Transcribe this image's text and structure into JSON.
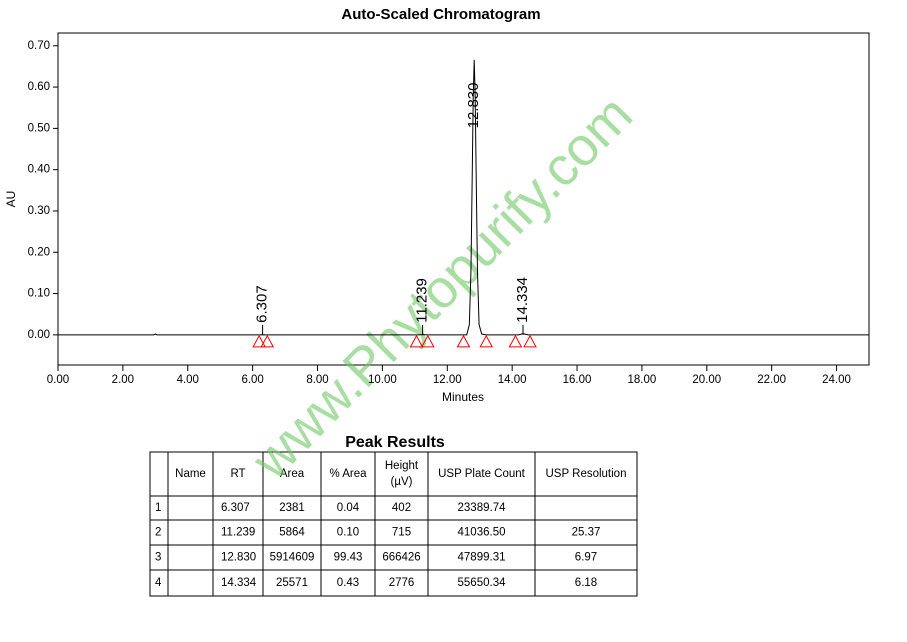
{
  "chart_data": {
    "type": "line",
    "title": "Auto-Scaled Chromatogram",
    "x_label": "Minutes",
    "y_label": "AU",
    "x": [
      0,
      2.95,
      3.0,
      3.05,
      6.2,
      6.307,
      6.42,
      11.1,
      11.239,
      11.4,
      12.6,
      12.68,
      12.73,
      12.77,
      12.8,
      12.83,
      12.86,
      12.89,
      12.93,
      12.98,
      13.06,
      13.2,
      14.2,
      14.334,
      14.5,
      25
    ],
    "values": [
      0,
      0,
      0.002,
      0,
      0,
      0.0004,
      0,
      0,
      0.0007,
      0,
      0,
      0.025,
      0.155,
      0.393,
      0.576,
      0.666,
      0.576,
      0.393,
      0.155,
      0.025,
      0.002,
      0,
      0,
      0.0028,
      0,
      0
    ],
    "color": "#000000",
    "xlim": [
      0,
      25
    ],
    "ylim": [
      -0.073,
      0.731
    ],
    "xticks": [
      {
        "value": 0,
        "label": "0.00"
      },
      {
        "value": 2,
        "label": "2.00"
      },
      {
        "value": 4,
        "label": "4.00"
      },
      {
        "value": 6,
        "label": "6.00"
      },
      {
        "value": 8,
        "label": "8.00"
      },
      {
        "value": 10,
        "label": "10.00"
      },
      {
        "value": 12,
        "label": "12.00"
      },
      {
        "value": 14,
        "label": "14.00"
      },
      {
        "value": 16,
        "label": "16.00"
      },
      {
        "value": 18,
        "label": "18.00"
      },
      {
        "value": 20,
        "label": "20.00"
      },
      {
        "value": 22,
        "label": "22.00"
      },
      {
        "value": 24,
        "label": "24.00"
      }
    ],
    "yticks": [
      {
        "value": 0,
        "label": "0.00"
      },
      {
        "value": 0.1,
        "label": "0.10"
      },
      {
        "value": 0.2,
        "label": "0.20"
      },
      {
        "value": 0.3,
        "label": "0.30"
      },
      {
        "value": 0.4,
        "label": "0.40"
      },
      {
        "value": 0.5,
        "label": "0.50"
      },
      {
        "value": 0.6,
        "label": "0.60"
      },
      {
        "value": 0.7,
        "label": "0.70"
      }
    ],
    "peak_labels": [
      6.307,
      11.239,
      {
        "value": 12.83,
        "label": "12.830"
      },
      14.334
    ],
    "peak_markers": [
      6.2,
      6.45,
      11.05,
      11.4,
      12.5,
      13.2,
      14.1,
      14.55
    ],
    "marker_color": "#ff0000"
  },
  "table": {
    "title": "Peak Results",
    "header": [
      "Name",
      "RT",
      "Area",
      "% Area",
      [
        "Height",
        "(µV)"
      ],
      "USP Plate Count",
      "USP Resolution"
    ],
    "rows": [
      [
        "1",
        "6.307",
        "2381",
        "0.04",
        "402",
        "23389.74"
      ],
      [
        "2",
        "11.239",
        "5864",
        "0.10",
        "715",
        "41036.50",
        "25.37"
      ],
      [
        "3",
        "12.830",
        "5914609",
        "99.43",
        "666426",
        "47899.31",
        "6.97"
      ],
      [
        "4",
        "14.334",
        "25571",
        "0.43",
        "2776",
        "55650.34",
        "6.18"
      ]
    ]
  },
  "watermark": "www.Phytopurify.com"
}
